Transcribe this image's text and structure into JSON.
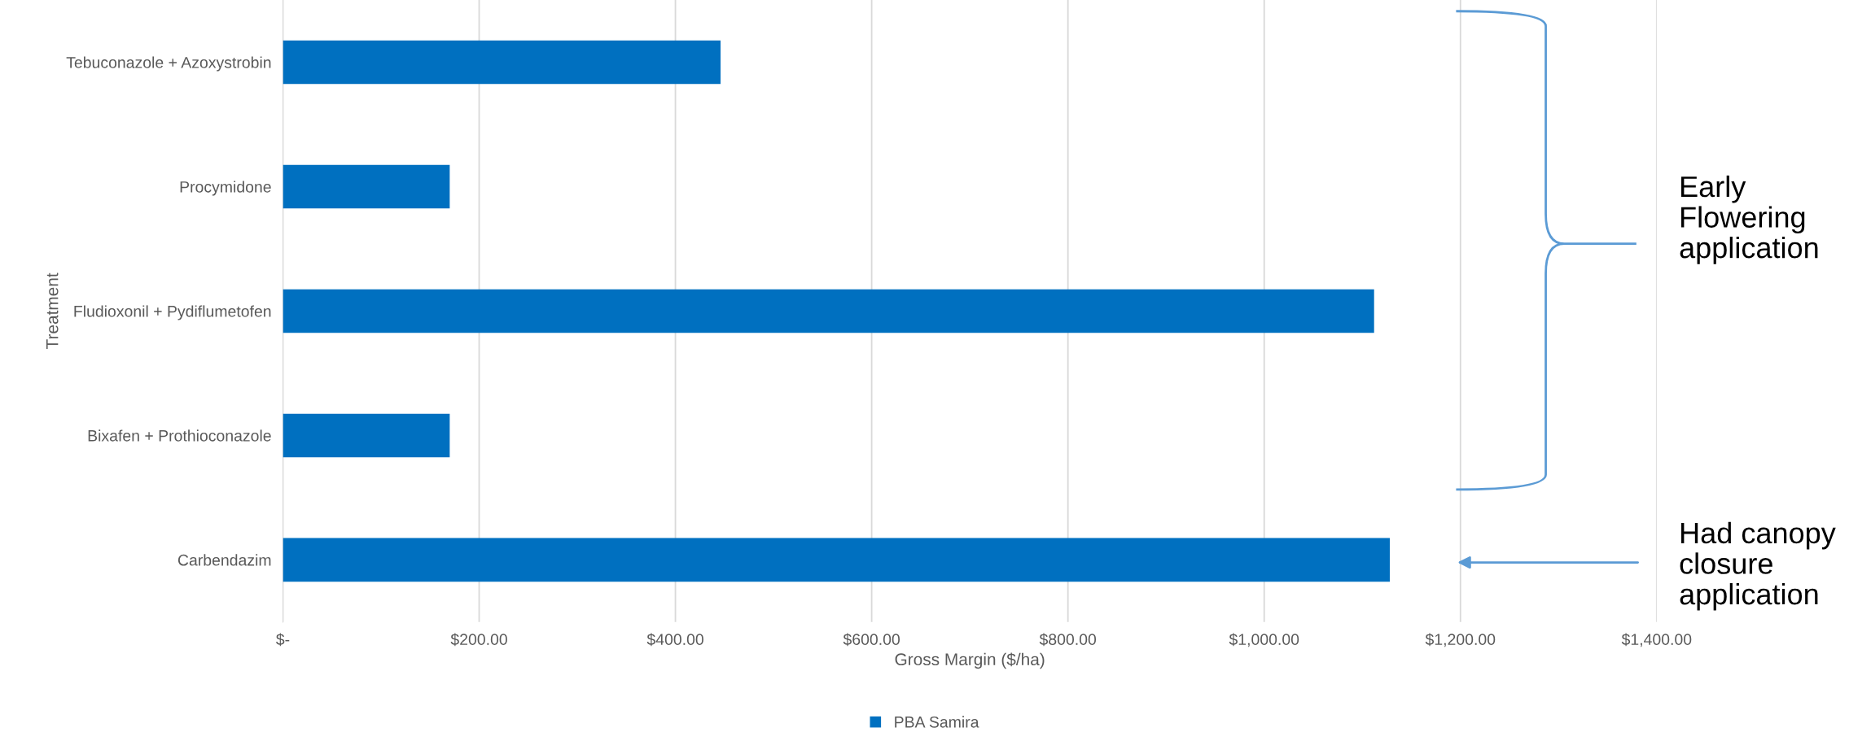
{
  "chart_data": {
    "type": "bar",
    "orientation": "horizontal",
    "xlabel": "Gross Margin ($/ha)",
    "ylabel": "Treatment",
    "categories": [
      "Tebuconazole + Azoxystrobin",
      "Procymidone",
      "Fludioxonil + Pydiflumetofen",
      "Bixafen + Prothioconazole",
      "Carbendazim"
    ],
    "series": [
      {
        "name": "PBA Samira",
        "color": "#0070c0",
        "values": [
          446,
          170,
          1112,
          170,
          1128
        ]
      }
    ],
    "xlim": [
      0,
      1400
    ],
    "xticks": [
      {
        "value": 0,
        "label": "$-"
      },
      {
        "value": 200,
        "label": "$200.00"
      },
      {
        "value": 400,
        "label": "$400.00"
      },
      {
        "value": 600,
        "label": "$600.00"
      },
      {
        "value": 800,
        "label": "$800.00"
      },
      {
        "value": 1000,
        "label": "$1,000.00"
      },
      {
        "value": 1200,
        "label": "$1,200.00"
      },
      {
        "value": 1400,
        "label": "$1,400.00"
      }
    ],
    "grid": "x",
    "legend": "bottom",
    "annotations": [
      "Early\nFlowering\napplication",
      "Had canopy\nclosure\napplication"
    ]
  }
}
